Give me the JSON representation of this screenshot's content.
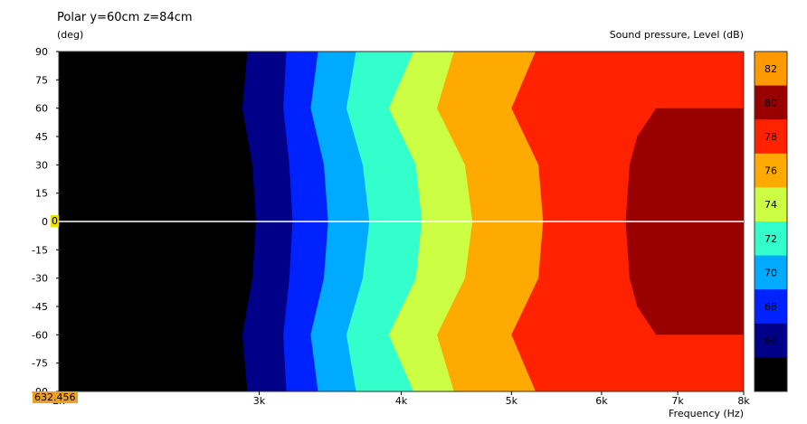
{
  "chart_data": {
    "type": "heatmap",
    "title": "Polar y=60cm z=84cm",
    "ylabel": "(deg)",
    "xlabel": "Frequency  (Hz)",
    "colorbar_label": "Sound pressure, Level  (dB)",
    "x_scale": "log",
    "xlim": [
      2000,
      8000
    ],
    "ylim": [
      -90,
      90
    ],
    "y_ticks": [
      90,
      75,
      60,
      45,
      30,
      15,
      0,
      -15,
      -30,
      -45,
      -60,
      -75,
      -90
    ],
    "x_ticks": [
      {
        "value": 2000,
        "label": "2k"
      },
      {
        "value": 3000,
        "label": "3k"
      },
      {
        "value": 4000,
        "label": "4k"
      },
      {
        "value": 5000,
        "label": "5k"
      },
      {
        "value": 6000,
        "label": "6k"
      },
      {
        "value": 7000,
        "label": "7k"
      },
      {
        "value": 8000,
        "label": "8k"
      }
    ],
    "levels": [
      {
        "value": 82,
        "label": "82",
        "color": "#ff9900"
      },
      {
        "value": 80,
        "label": "80",
        "color": "#990000"
      },
      {
        "value": 78,
        "label": "78",
        "color": "#ff2200"
      },
      {
        "value": 76,
        "label": "76",
        "color": "#ffaa00"
      },
      {
        "value": 74,
        "label": "74",
        "color": "#ccff44"
      },
      {
        "value": 72,
        "label": "72",
        "color": "#33ffcc"
      },
      {
        "value": 70,
        "label": "70",
        "color": "#00aaff"
      },
      {
        "value": 68,
        "label": "68",
        "color": "#0022ff"
      },
      {
        "value": 66,
        "label": "66",
        "color": "#000088"
      },
      {
        "value": 64,
        "label": "",
        "color": "#000000"
      }
    ],
    "contours": [
      {
        "level": 66,
        "color": "#000088",
        "freq_at_angle": [
          [
            90,
            2930
          ],
          [
            60,
            2900
          ],
          [
            30,
            2960
          ],
          [
            0,
            2980
          ],
          [
            -30,
            2960
          ],
          [
            -60,
            2900
          ],
          [
            -90,
            2930
          ]
        ]
      },
      {
        "level": 68,
        "color": "#0022ff",
        "freq_at_angle": [
          [
            90,
            3170
          ],
          [
            60,
            3150
          ],
          [
            30,
            3190
          ],
          [
            0,
            3210
          ],
          [
            -30,
            3190
          ],
          [
            -60,
            3150
          ],
          [
            -90,
            3170
          ]
        ]
      },
      {
        "level": 70,
        "color": "#00aaff",
        "freq_at_angle": [
          [
            90,
            3380
          ],
          [
            60,
            3330
          ],
          [
            30,
            3420
          ],
          [
            0,
            3450
          ],
          [
            -30,
            3420
          ],
          [
            -60,
            3330
          ],
          [
            -90,
            3380
          ]
        ]
      },
      {
        "level": 72,
        "color": "#33ffcc",
        "freq_at_angle": [
          [
            90,
            3650
          ],
          [
            60,
            3580
          ],
          [
            30,
            3700
          ],
          [
            0,
            3750
          ],
          [
            -30,
            3700
          ],
          [
            -60,
            3580
          ],
          [
            -90,
            3650
          ]
        ]
      },
      {
        "level": 74,
        "color": "#ccff44",
        "freq_at_angle": [
          [
            90,
            4100
          ],
          [
            60,
            3900
          ],
          [
            30,
            4120
          ],
          [
            0,
            4170
          ],
          [
            -30,
            4120
          ],
          [
            -60,
            3900
          ],
          [
            -90,
            4100
          ]
        ]
      },
      {
        "level": 76,
        "color": "#ffaa00",
        "freq_at_angle": [
          [
            90,
            4450
          ],
          [
            60,
            4300
          ],
          [
            30,
            4550
          ],
          [
            0,
            4620
          ],
          [
            -30,
            4550
          ],
          [
            -60,
            4300
          ],
          [
            -90,
            4450
          ]
        ]
      },
      {
        "level": 78,
        "color": "#ff2200",
        "freq_at_angle": [
          [
            90,
            5250
          ],
          [
            60,
            5000
          ],
          [
            30,
            5280
          ],
          [
            0,
            5330
          ],
          [
            -30,
            5280
          ],
          [
            -60,
            5000
          ],
          [
            -90,
            5250
          ]
        ]
      },
      {
        "level": 80,
        "color": "#990000",
        "freq_at_angle": [
          [
            60,
            6700
          ],
          [
            45,
            6450
          ],
          [
            30,
            6350
          ],
          [
            0,
            6300
          ],
          [
            -30,
            6350
          ],
          [
            -45,
            6450
          ],
          [
            -60,
            6700
          ]
        ]
      }
    ],
    "cursor": {
      "frequency_label": "632.456",
      "angle_label": "0"
    }
  }
}
